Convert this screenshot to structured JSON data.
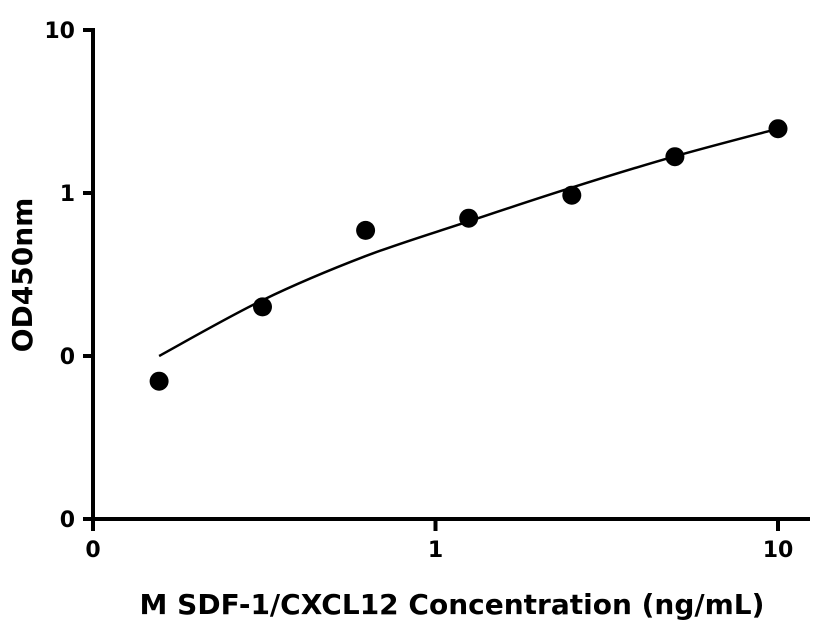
{
  "chart_data": {
    "type": "scatter",
    "x_scale": "log",
    "y_scale": "log",
    "xlabel": "M SDF-1/CXCL12 Concentration (ng/mL)",
    "ylabel": "OD450nm",
    "x_ticks": [
      {
        "value": 0.1,
        "label": "0"
      },
      {
        "value": 1,
        "label": "1"
      },
      {
        "value": 10,
        "label": "10"
      }
    ],
    "y_ticks": [
      {
        "value": 0.01,
        "label": "0"
      },
      {
        "value": 0.1,
        "label": "0"
      },
      {
        "value": 1,
        "label": "1"
      },
      {
        "value": 10,
        "label": "10"
      }
    ],
    "xlim": [
      0.1,
      12
    ],
    "ylim": [
      0.01,
      10
    ],
    "grid": false,
    "series": [
      {
        "x": [
          0.156,
          0.3125,
          0.625,
          1.25,
          2.5,
          5,
          10
        ],
        "y": [
          0.07,
          0.2,
          0.59,
          0.7,
          0.97,
          1.67,
          2.48
        ]
      }
    ],
    "fit_curve": {
      "x": [
        0.156,
        0.3125,
        0.625,
        1.25,
        2.5,
        5,
        10
      ],
      "y": [
        0.1,
        0.22,
        0.41,
        0.67,
        1.08,
        1.68,
        2.48
      ]
    },
    "colors": {
      "marker": "#000000",
      "line": "#000000"
    }
  }
}
